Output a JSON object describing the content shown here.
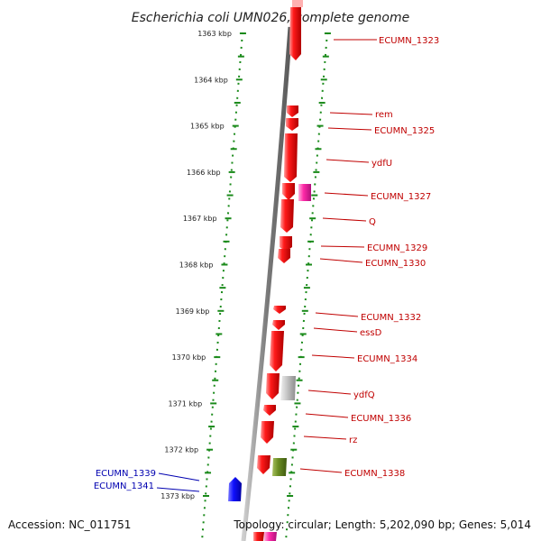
{
  "title": "Escherichia coli UMN026, complete genome",
  "accession": "Accession: NC_011751",
  "topology": "Topology: circular; Length: 5,202,090 bp; Genes: 5,014",
  "colors": {
    "forward_gene": "#ee0000",
    "reverse_gene": "#0000ee",
    "rna_gene": "#ee2aa0",
    "pseudo_gene": "#b8b8b8",
    "other_gene": "#6b8e23",
    "backbone": "#888888",
    "ruler": "#1a8a1a"
  },
  "ticks": [
    "1363 kbp",
    "1364 kbp",
    "1365 kbp",
    "1366 kbp",
    "1367 kbp",
    "1368 kbp",
    "1369 kbp",
    "1370 kbp",
    "1371 kbp",
    "1372 kbp",
    "1373 kbp"
  ],
  "gene_labels": [
    {
      "text": "ECUMN_1323",
      "strand": "+"
    },
    {
      "text": "rem",
      "strand": "+"
    },
    {
      "text": "ECUMN_1325",
      "strand": "+"
    },
    {
      "text": "ydfU",
      "strand": "+"
    },
    {
      "text": "ECUMN_1327",
      "strand": "+"
    },
    {
      "text": "Q",
      "strand": "+"
    },
    {
      "text": "ECUMN_1329",
      "strand": "+"
    },
    {
      "text": "ECUMN_1330",
      "strand": "+"
    },
    {
      "text": "ECUMN_1332",
      "strand": "+"
    },
    {
      "text": "essD",
      "strand": "+"
    },
    {
      "text": "ECUMN_1334",
      "strand": "+"
    },
    {
      "text": "ydfQ",
      "strand": "+"
    },
    {
      "text": "ECUMN_1336",
      "strand": "+"
    },
    {
      "text": "rz",
      "strand": "+"
    },
    {
      "text": "ECUMN_1338",
      "strand": "+"
    },
    {
      "text": "ECUMN_1339",
      "strand": "-"
    },
    {
      "text": "ECUMN_1341",
      "strand": "-"
    }
  ]
}
